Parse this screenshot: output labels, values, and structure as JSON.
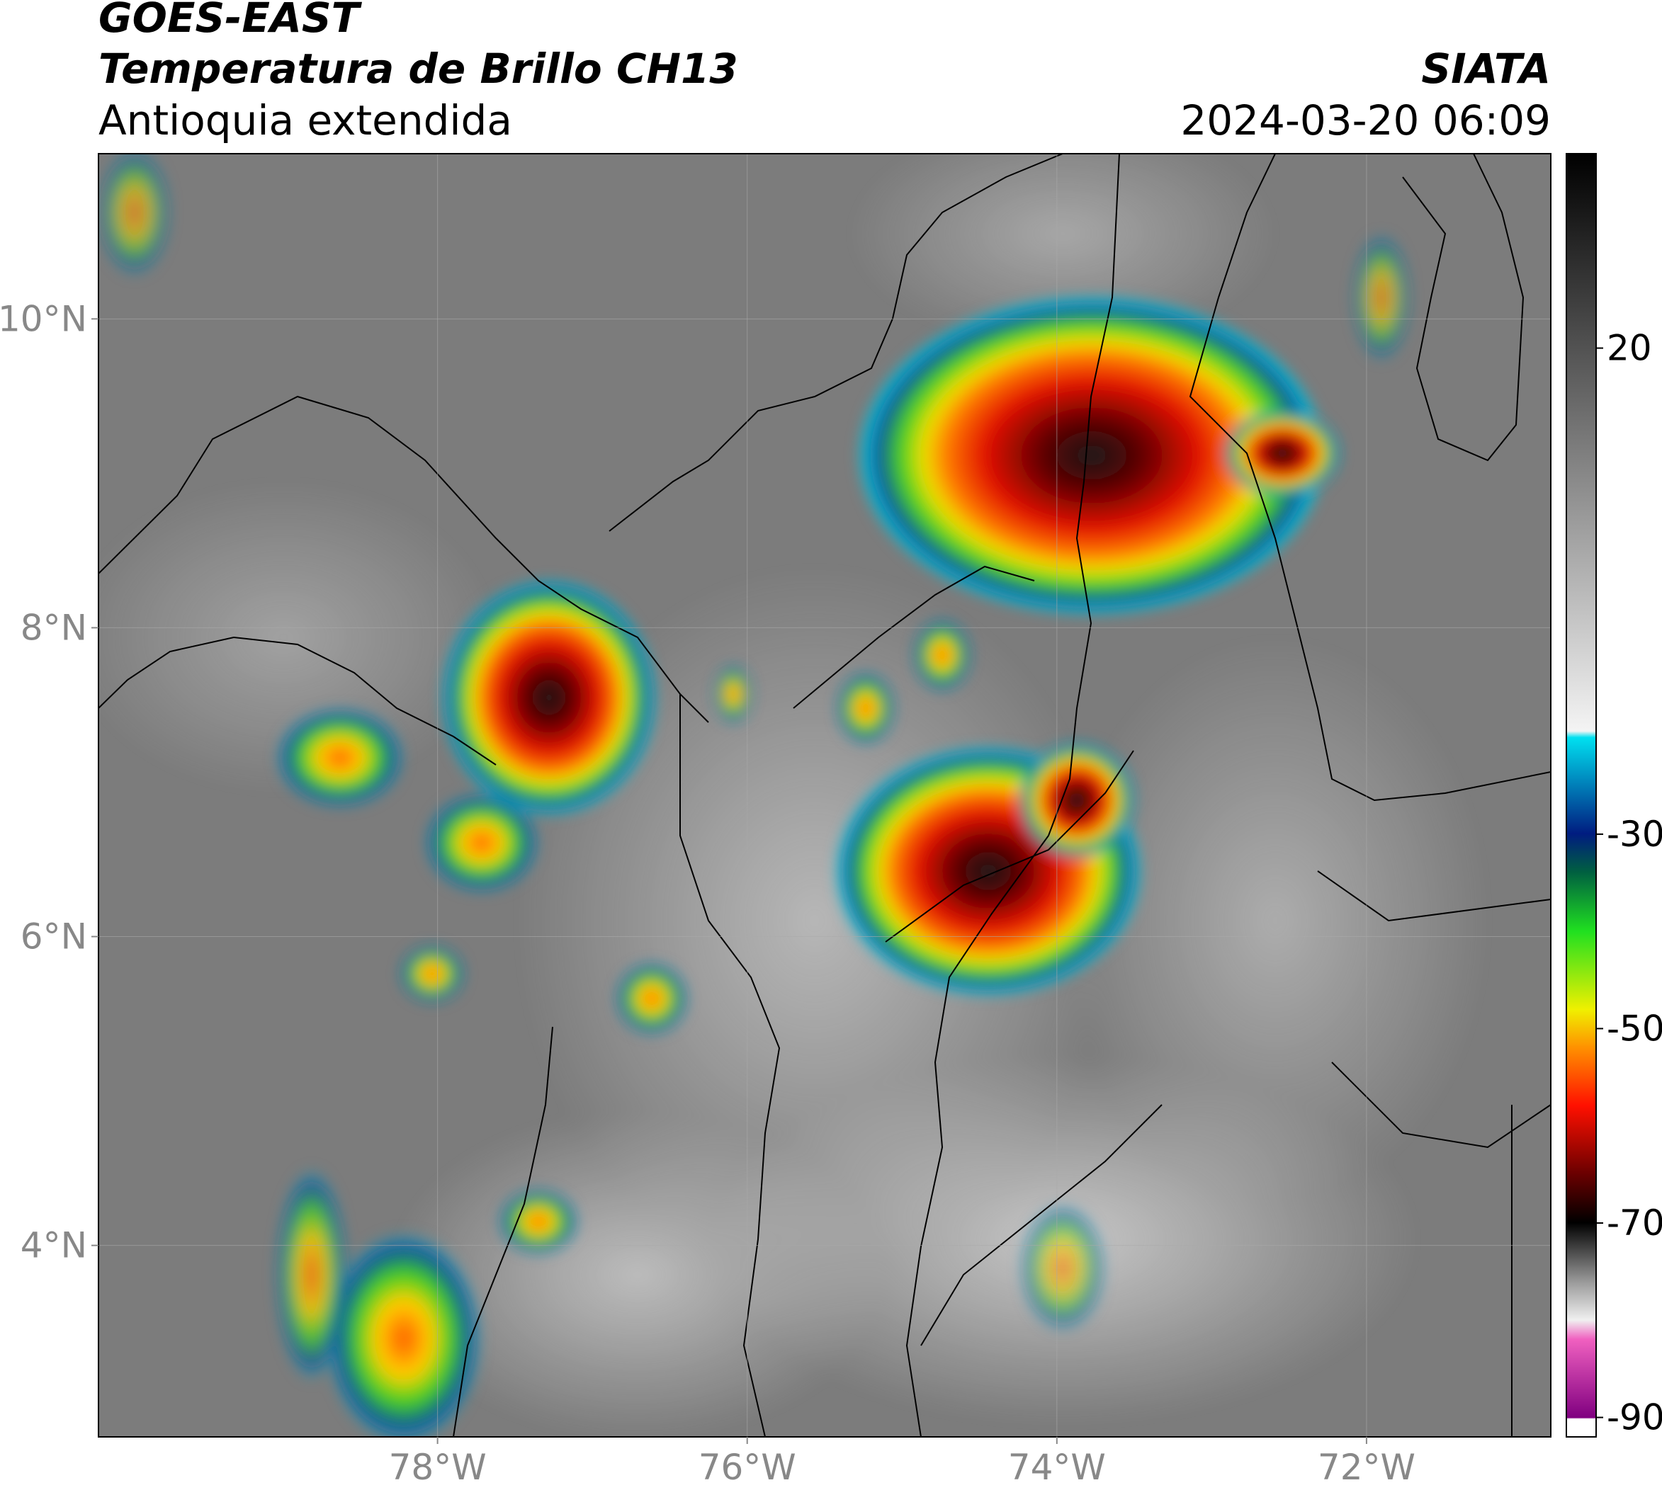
{
  "header": {
    "satellite": "GOES-EAST",
    "title": "Temperatura de Brillo CH13",
    "region": "Antioquia extendida",
    "source": "SIATA",
    "datetime": "2024-03-20 06:09"
  },
  "map": {
    "lon_range": [
      -80.19,
      -70.81
    ],
    "lat_range": [
      2.76,
      11.07
    ],
    "lon_ticks": [
      {
        "value": -78,
        "label": "78°W"
      },
      {
        "value": -76,
        "label": "76°W"
      },
      {
        "value": -74,
        "label": "74°W"
      },
      {
        "value": -72,
        "label": "72°W"
      }
    ],
    "lat_ticks": [
      {
        "value": 10,
        "label": "10°N"
      },
      {
        "value": 8,
        "label": "8°N"
      },
      {
        "value": 6,
        "label": "6°N"
      },
      {
        "value": 4,
        "label": "4°N"
      }
    ]
  },
  "colorbar": {
    "range": [
      -92,
      40
    ],
    "ticks": [
      20,
      -30,
      -50,
      -70,
      -90
    ]
  }
}
